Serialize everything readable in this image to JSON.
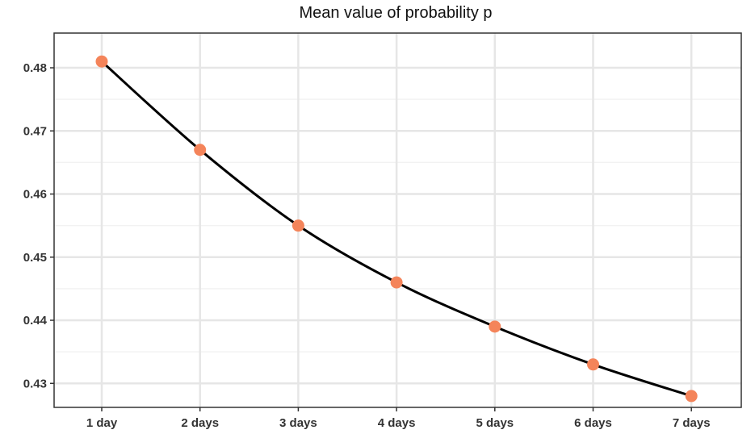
{
  "chart_data": {
    "type": "line",
    "title": "Mean value of probability p",
    "xlabel": "",
    "ylabel": "",
    "categories": [
      "1 day",
      "2 days",
      "3 days",
      "4 days",
      "5 days",
      "6 days",
      "7 days"
    ],
    "series": [
      {
        "values": [
          0.481,
          0.467,
          0.455,
          0.446,
          0.439,
          0.433,
          0.428
        ]
      }
    ],
    "yticks": [
      "0.43",
      "0.44",
      "0.45",
      "0.46",
      "0.47",
      "0.48"
    ],
    "ylim": [
      0.4262,
      0.4855
    ],
    "grid": true,
    "legend": "none",
    "colors": {
      "line": "#000000",
      "marker": "#f4845a",
      "grid_major": "#e6e6e6",
      "grid_minor": "#f2f2f2",
      "frame": "#333333"
    }
  }
}
